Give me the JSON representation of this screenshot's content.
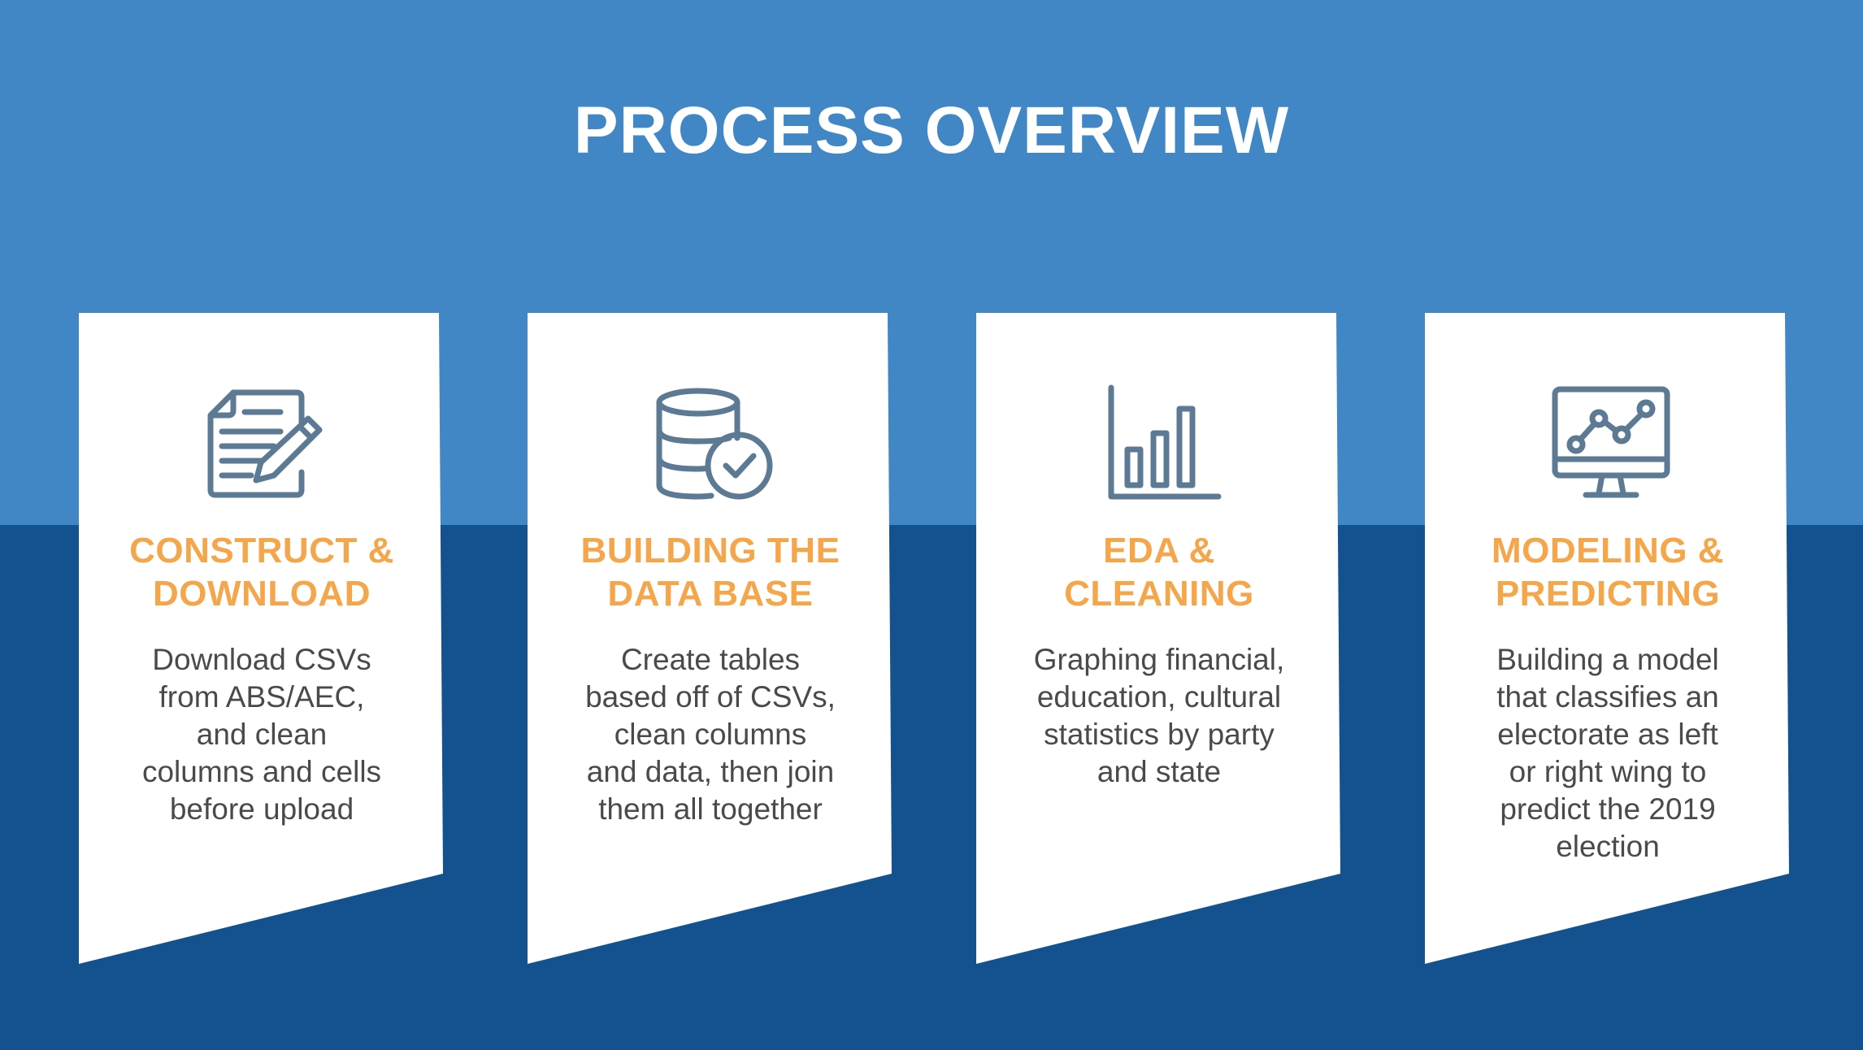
{
  "title": "PROCESS OVERVIEW",
  "colors": {
    "top_background": "#4186c5",
    "bottom_background": "#13528f",
    "heading": "#f5a54a",
    "body_text": "#4a4a4a",
    "icon": "#5c7a94",
    "card": "#ffffff"
  },
  "cards": [
    {
      "icon": "document-edit-icon",
      "heading_lines": [
        "CONSTRUCT &",
        "DOWNLOAD"
      ],
      "body_lines": [
        "Download CSVs",
        "from ABS/AEC,",
        "and clean",
        "columns and cells",
        "before upload"
      ]
    },
    {
      "icon": "database-check-icon",
      "heading_lines": [
        "BUILDING THE",
        "DATA BASE"
      ],
      "body_lines": [
        "Create tables",
        "based off of CSVs,",
        "clean columns",
        "and data, then join",
        "them all together"
      ]
    },
    {
      "icon": "bar-chart-icon",
      "heading_lines": [
        "EDA &",
        "CLEANING"
      ],
      "body_lines": [
        "Graphing financial,",
        "education, cultural",
        "statistics by party",
        "and state"
      ]
    },
    {
      "icon": "monitor-line-chart-icon",
      "heading_lines": [
        "MODELING &",
        "PREDICTING"
      ],
      "body_lines": [
        "Building a model",
        "that classifies an",
        "electorate as left",
        "or right wing to",
        "predict the 2019",
        "election"
      ]
    }
  ]
}
